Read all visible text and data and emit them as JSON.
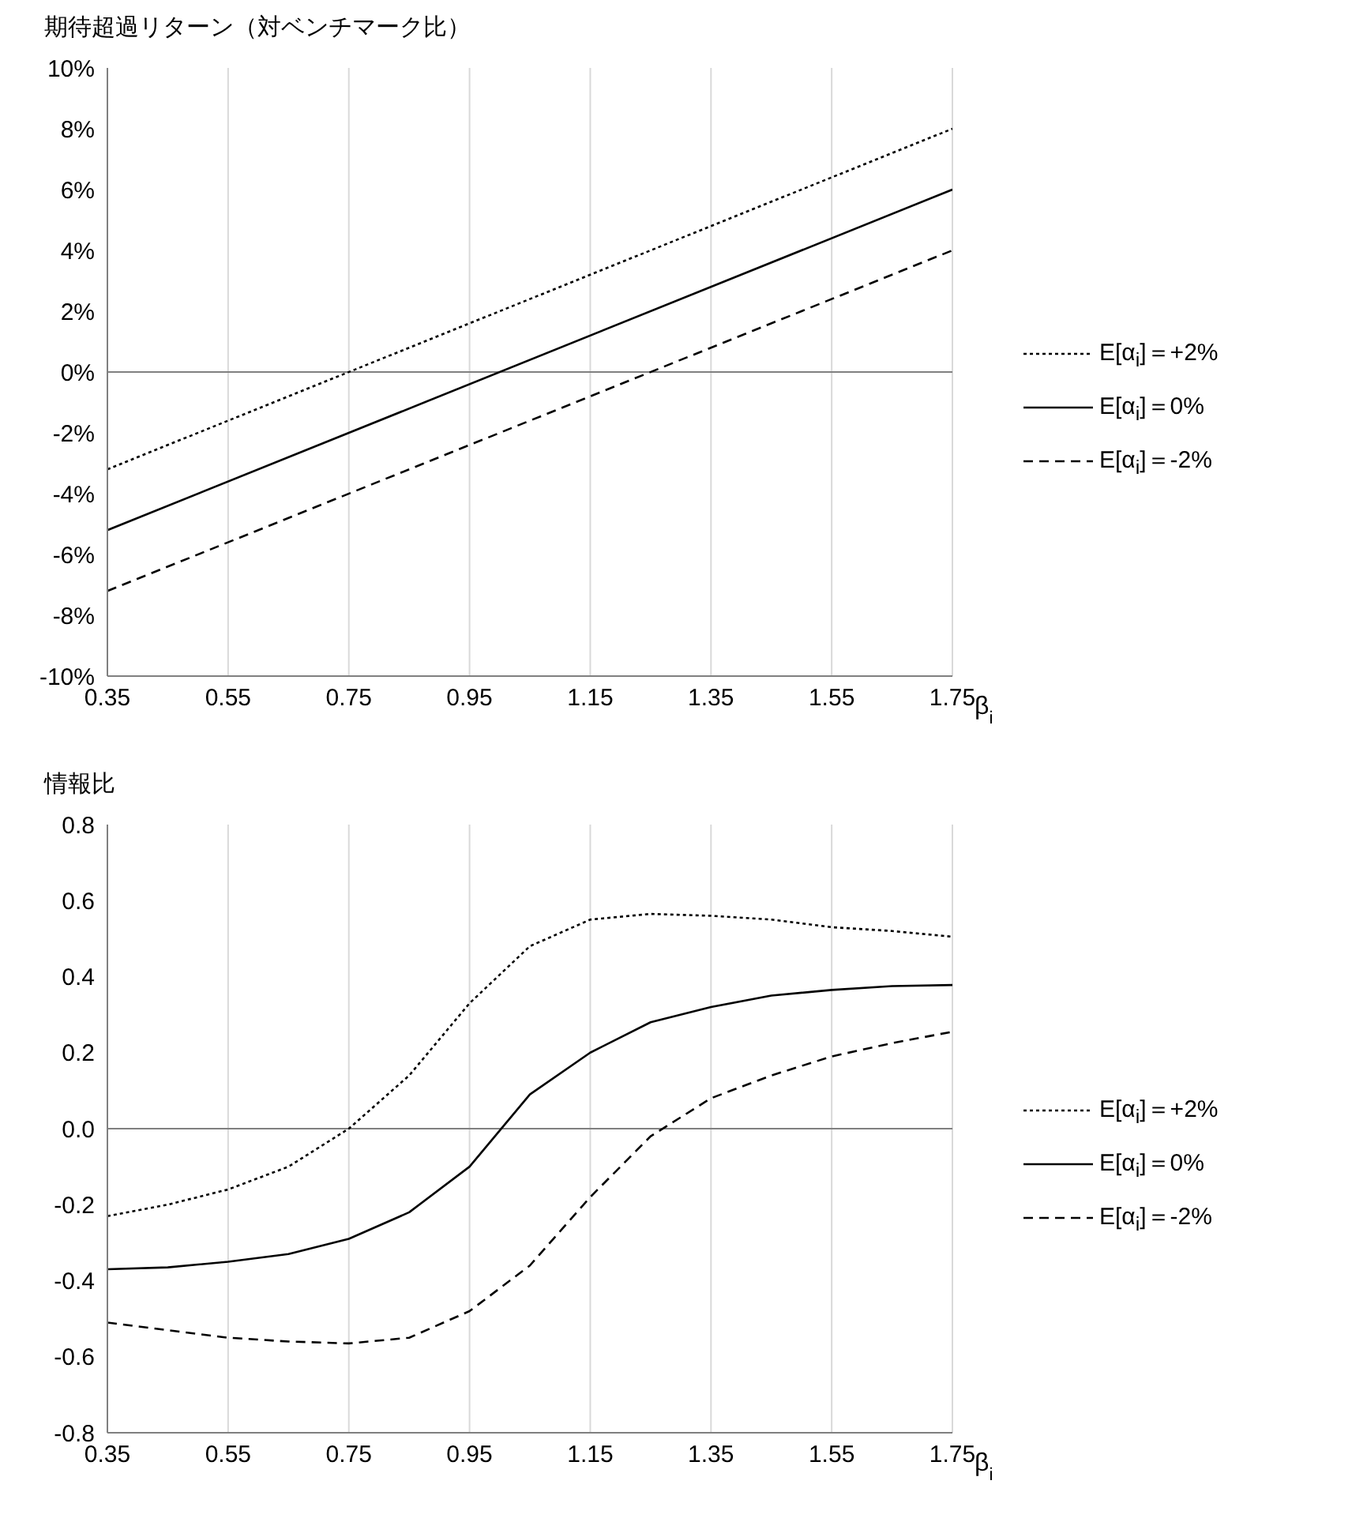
{
  "chart_data": [
    {
      "type": "line",
      "title": "期待超過リターン（対ベンチマーク比）",
      "xlabel": "β$_{i}$",
      "x": [
        0.35,
        1.75
      ],
      "series": [
        {
          "name": "E[α$_{i}$]＝+2%",
          "color": "#000000",
          "line_style": "dotted",
          "values": [
            -3.2,
            8
          ]
        },
        {
          "name": "E[α$_{i}$]＝0%",
          "color": "#000000",
          "line_style": "solid",
          "values": [
            -5.2,
            6
          ]
        },
        {
          "name": "E[α$_{i}$]＝-2%",
          "color": "#000000",
          "line_style": "dashed",
          "values": [
            -7.2,
            4
          ]
        }
      ],
      "xlim": [
        0.35,
        1.75
      ],
      "xticks": [
        0.35,
        0.55,
        0.75,
        0.95,
        1.15,
        1.35,
        1.55,
        1.75
      ],
      "ylim": [
        -10,
        10
      ],
      "yticks": [
        {
          "value": -10,
          "label": "-10%"
        },
        {
          "value": -8,
          "label": "-8%"
        },
        {
          "value": -6,
          "label": "-6%"
        },
        {
          "value": -4,
          "label": "-4%"
        },
        {
          "value": -2,
          "label": "-2%"
        },
        {
          "value": 0,
          "label": "0%"
        },
        {
          "value": 2,
          "label": "2%"
        },
        {
          "value": 4,
          "label": "4%"
        },
        {
          "value": 6,
          "label": "6%"
        },
        {
          "value": 8,
          "label": "8%"
        },
        {
          "value": 10,
          "label": "10%"
        }
      ],
      "ref_lines": [
        {
          "axis": "y",
          "value": 0,
          "color": "#808080"
        }
      ],
      "grid": "x",
      "legend": "right",
      "marker": "none"
    },
    {
      "type": "line",
      "title": "情報比",
      "xlabel": "β$_{i}$",
      "x": [
        0.35,
        0.45,
        0.55,
        0.65,
        0.75,
        0.85,
        0.95,
        1.05,
        1.15,
        1.25,
        1.35,
        1.45,
        1.55,
        1.65,
        1.75
      ],
      "series": [
        {
          "name": "E[α$_{i}$]＝+2%",
          "color": "#000000",
          "line_style": "dotted",
          "values": [
            -0.23,
            -0.2,
            -0.16,
            -0.1,
            0.0,
            0.14,
            0.33,
            0.48,
            0.55,
            0.565,
            0.56,
            0.55,
            0.53,
            0.52,
            0.505
          ]
        },
        {
          "name": "E[α$_{i}$]＝0%",
          "color": "#000000",
          "line_style": "solid",
          "values": [
            -0.37,
            -0.365,
            -0.35,
            -0.33,
            -0.29,
            -0.22,
            -0.1,
            0.09,
            0.2,
            0.28,
            0.32,
            0.35,
            0.365,
            0.375,
            0.378
          ]
        },
        {
          "name": "E[α$_{i}$]＝-2%",
          "color": "#000000",
          "line_style": "dashed",
          "values": [
            -0.51,
            -0.53,
            -0.55,
            -0.56,
            -0.565,
            -0.55,
            -0.48,
            -0.36,
            -0.18,
            -0.02,
            0.08,
            0.14,
            0.19,
            0.225,
            0.255
          ]
        }
      ],
      "xlim": [
        0.35,
        1.75
      ],
      "xticks": [
        0.35,
        0.55,
        0.75,
        0.95,
        1.15,
        1.35,
        1.55,
        1.75
      ],
      "ylim": [
        -0.8,
        0.8
      ],
      "yticks": [
        {
          "value": -0.8,
          "label": "-0.8"
        },
        {
          "value": -0.6,
          "label": "-0.6"
        },
        {
          "value": -0.4,
          "label": "-0.4"
        },
        {
          "value": -0.2,
          "label": "-0.2"
        },
        {
          "value": 0,
          "label": "0.0"
        },
        {
          "value": 0.2,
          "label": "0.2"
        },
        {
          "value": 0.4,
          "label": "0.4"
        },
        {
          "value": 0.6,
          "label": "0.6"
        },
        {
          "value": 0.8,
          "label": "0.8"
        }
      ],
      "ref_lines": [
        {
          "axis": "y",
          "value": 0,
          "color": "#808080"
        }
      ],
      "grid": "x",
      "legend": "right",
      "marker": "none"
    }
  ]
}
